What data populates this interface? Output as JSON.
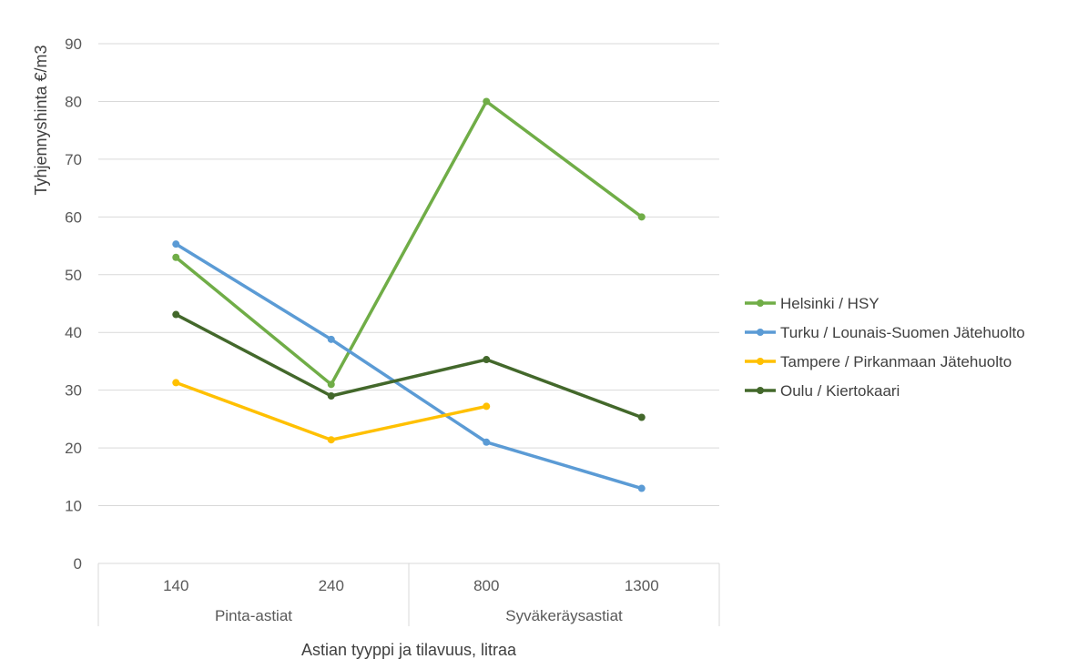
{
  "chart_data": {
    "type": "line",
    "title": "",
    "xlabel": "Astian tyyppi ja tilavuus, litraa",
    "ylabel": "Tyhjennyshinta €/m3",
    "ylim": [
      0,
      90
    ],
    "yticks": [
      "0",
      "10",
      "20",
      "30",
      "40",
      "50",
      "60",
      "70",
      "80",
      "90"
    ],
    "categories": [
      "140",
      "240",
      "800",
      "1300"
    ],
    "category_groups": [
      {
        "label": "Pinta-astiat",
        "categories": [
          "140",
          "240"
        ]
      },
      {
        "label": "Syväkeräysastiat",
        "categories": [
          "800",
          "1300"
        ]
      }
    ],
    "grid": true,
    "legend_position": "right",
    "series": [
      {
        "name": "Helsinki / HSY",
        "color": "#70AD47",
        "values": [
          53,
          31,
          80,
          60
        ]
      },
      {
        "name": "Turku / Lounais-Suomen Jätehuolto",
        "color": "#5B9BD5",
        "values": [
          55.3,
          38.8,
          21,
          13
        ]
      },
      {
        "name": "Tampere / Pirkanmaan Jätehuolto",
        "color": "#FFC000",
        "values": [
          31.3,
          21.4,
          27.2,
          null
        ]
      },
      {
        "name": "Oulu / Kiertokaari",
        "color": "#43682B",
        "values": [
          43.1,
          29,
          35.3,
          25.3
        ]
      }
    ]
  }
}
